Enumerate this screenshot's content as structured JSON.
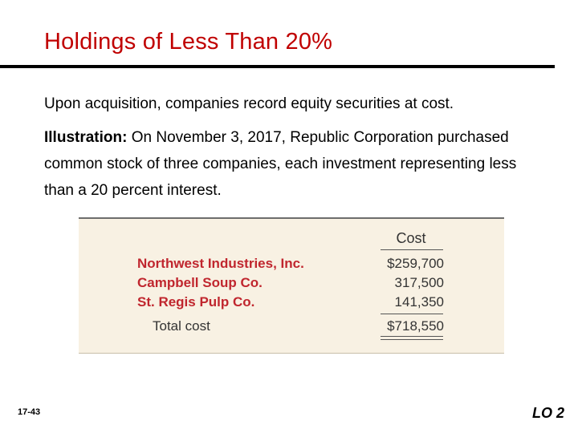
{
  "slide": {
    "title": "Holdings of Less Than 20%",
    "para1": "Upon acquisition, companies record equity securities at cost.",
    "para2_lead": "Illustration:",
    "para2_body": " On November 3, 2017, Republic Corporation purchased common stock of three companies, each investment representing less than a 20 percent interest.",
    "slide_number": "17-43",
    "learning_objective": "LO 2"
  },
  "table": {
    "column_header": "Cost",
    "rows": [
      {
        "company": "Northwest Industries, Inc.",
        "cost": "$259,700"
      },
      {
        "company": "Campbell Soup Co.",
        "cost": "317,500"
      },
      {
        "company": "St. Regis Pulp Co.",
        "cost": "141,350"
      }
    ],
    "total_label": "Total cost",
    "total_value": "$718,550"
  },
  "colors": {
    "title": "#c00000",
    "company_names": "#c0262e",
    "panel_background": "#f8f1e3"
  }
}
